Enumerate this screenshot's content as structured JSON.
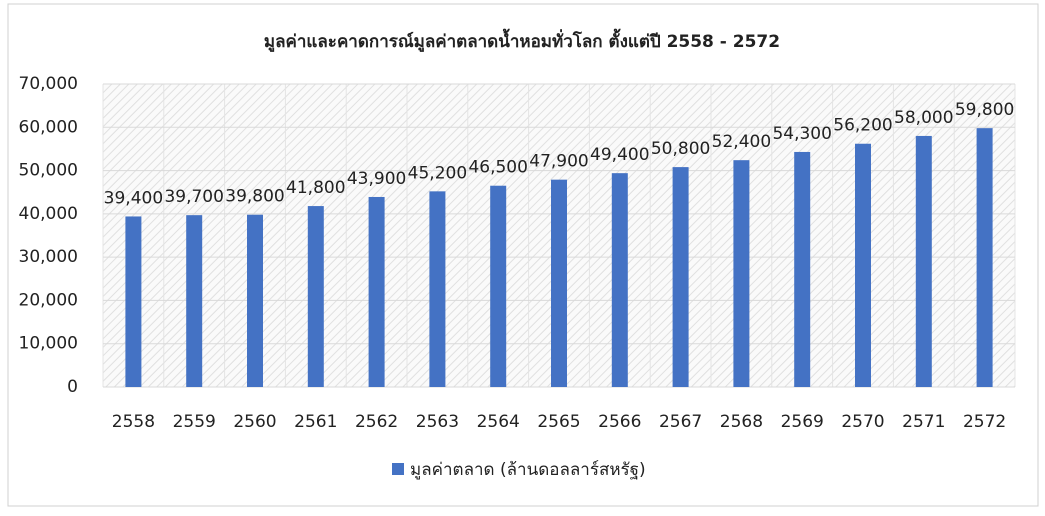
{
  "chart_data": {
    "type": "bar",
    "title": "มูลค่าและคาดการณ์มูลค่าตลาดน้ำหอมทั่วโลก ตั้งแต่ปี 2558 - 2572",
    "categories": [
      "2558",
      "2559",
      "2560",
      "2561",
      "2562",
      "2563",
      "2564",
      "2565",
      "2566",
      "2567",
      "2568",
      "2569",
      "2570",
      "2571",
      "2572"
    ],
    "series": [
      {
        "name": "มูลค่าตลาด (ล้านดอลลาร์สหรัฐ)",
        "color": "#4472c4",
        "values": [
          39400,
          39700,
          39800,
          41800,
          43900,
          45200,
          46500,
          47900,
          49400,
          50800,
          52400,
          54300,
          56200,
          58000,
          59800
        ],
        "value_labels": [
          "39,400",
          "39,700",
          "39,800",
          "41,800",
          "43,900",
          "45,200",
          "46,500",
          "47,900",
          "49,400",
          "50,800",
          "52,400",
          "54,300",
          "56,200",
          "58,000",
          "59,800"
        ]
      }
    ],
    "ylim": [
      0,
      70000
    ],
    "yticks": [
      0,
      {
        "value": 10000,
        "label": "10,000"
      },
      {
        "value": 20000,
        "label": "20,000"
      },
      {
        "value": 30000,
        "label": "30,000"
      },
      {
        "value": 40000,
        "label": "40,000"
      },
      {
        "value": 50000,
        "label": "50,000"
      },
      {
        "value": 60000,
        "label": "60,000"
      },
      {
        "value": 70000,
        "label": "70,000"
      }
    ],
    "grid": true,
    "legend": "bottom"
  }
}
